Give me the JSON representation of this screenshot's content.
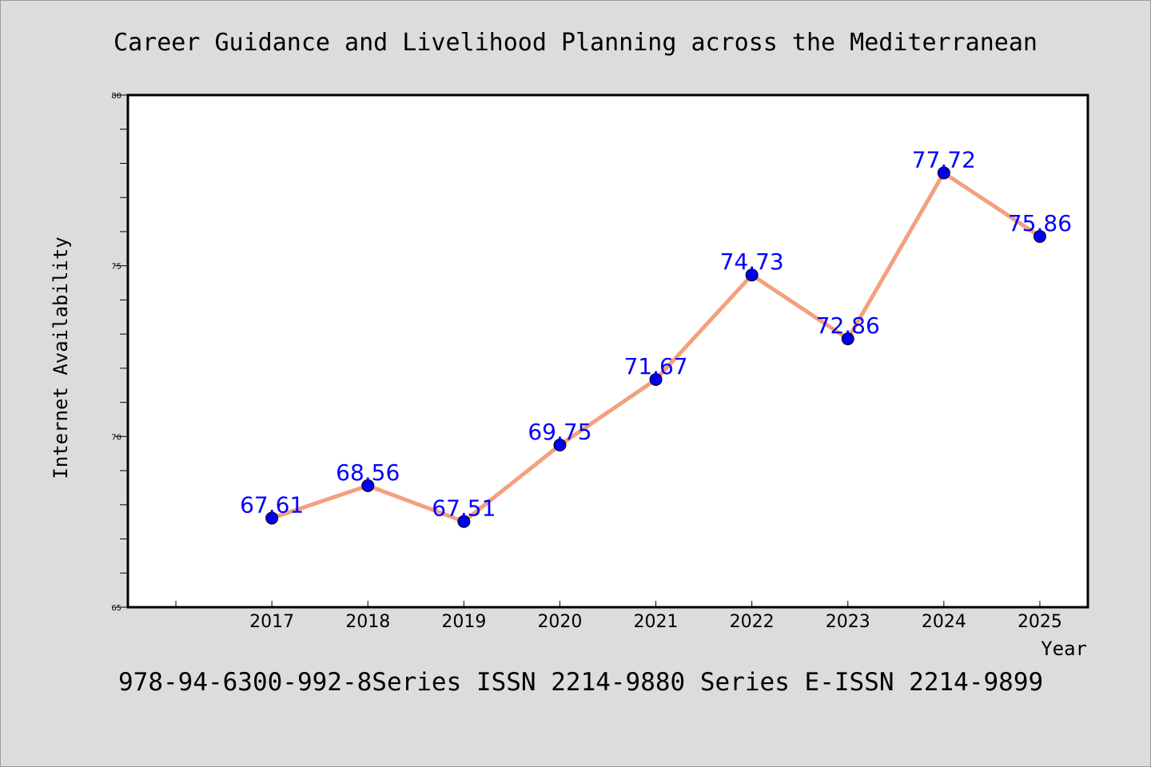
{
  "chart_data": {
    "type": "line",
    "title": "Career Guidance and Livelihood Planning across the Mediterranean",
    "xlabel": "Year",
    "ylabel": "Internet Availability",
    "footer": "978-94-6300-992-8Series ISSN 2214-9880 Series E-ISSN 2214-9899",
    "x": [
      "2017",
      "2018",
      "2019",
      "2020",
      "2021",
      "2022",
      "2023",
      "2024",
      "2025"
    ],
    "x_start": 2015.5,
    "x_end": 2025.5,
    "ylim": [
      65,
      80
    ],
    "yticks": [
      "65",
      "70",
      "75",
      "80"
    ],
    "series": [
      {
        "values": [
          67.61,
          68.56,
          67.51,
          69.75,
          71.67,
          74.73,
          72.86,
          77.72,
          75.86
        ],
        "data_labels": [
          "67.61",
          "68.56",
          "67.51",
          "69.75",
          "71.67",
          "74.73",
          "72.86",
          "77.72",
          "75.86"
        ],
        "line_color": "#f4a07f",
        "marker_color": "#0000ee",
        "label_color": "#0000ff"
      }
    ],
    "grid": false,
    "legend": "none"
  }
}
